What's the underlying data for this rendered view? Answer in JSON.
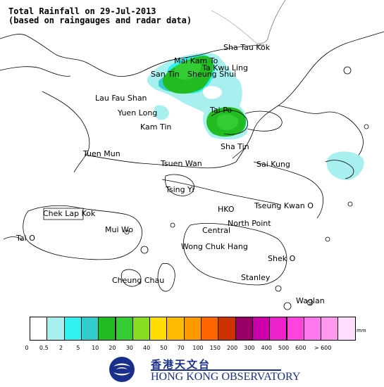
{
  "title": {
    "line1": "Total Rainfall on 29-Jul-2013",
    "line2": "(based on raingauges and radar data)"
  },
  "places": {
    "sha_tau_kok": "Sha Tau Kok",
    "mai_kam_to": "Mai Kam To",
    "ta_kwu_ling": "Ta Kwu Ling",
    "san_tin": "San Tin",
    "sheung_shui": "Sheung Shui",
    "lau_fau_shan": "Lau Fau Shan",
    "yuen_long": "Yuen Long",
    "tai_po": "Tai Po",
    "kam_tin": "Kam Tin",
    "sha_tin": "Sha Tin",
    "tuen_mun": "Tuen Mun",
    "tsuen_wan": "Tsuen Wan",
    "sai_kung": "Sai Kung",
    "tsing_yi": "Tsing Yi",
    "chek_lap_kok": "Chek Lap Kok",
    "hko": "HKO",
    "tseung_kwan_o": "Tseung Kwan O",
    "mui_wo": "Mui Wo",
    "north_point": "North Point",
    "central": "Central",
    "tai_o": "Tai O",
    "wong_chuk_hang": "Wong Chuk Hang",
    "shek_o": "Shek O",
    "cheung_chau": "Cheung Chau",
    "stanley": "Stanley",
    "waglan": "Waglan"
  },
  "legend": {
    "unit": "mm",
    "colors": [
      "#ffffff",
      "#a8f0f0",
      "#33f0f0",
      "#33cccc",
      "#22bb22",
      "#33cc33",
      "#88dd22",
      "#ffdd00",
      "#ffbb00",
      "#ff9900",
      "#ff6600",
      "#cc3300",
      "#990066",
      "#cc00aa",
      "#ee22cc",
      "#ff44dd",
      "#ff77ee",
      "#ff99ee",
      "#ffddff"
    ],
    "ticks": [
      "0",
      "0.5",
      "2",
      "5",
      "10",
      "20",
      "30",
      "40",
      "50",
      "70",
      "100",
      "150",
      "200",
      "300",
      "400",
      "500",
      "600",
      "> 600"
    ]
  },
  "logo": {
    "chinese": "香港天文台",
    "english": "HONG KONG OBSERVATORY",
    "color": "#1a2f8c"
  }
}
